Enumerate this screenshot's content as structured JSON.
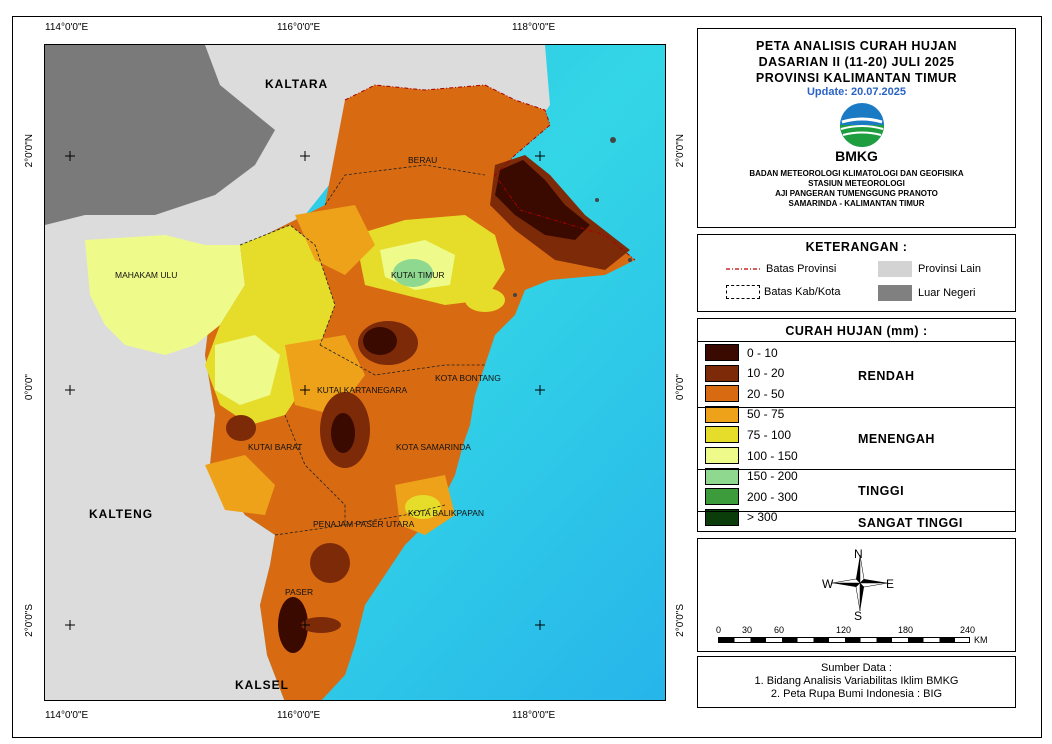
{
  "title": {
    "line1": "PETA ANALISIS CURAH HUJAN",
    "line2": "DASARIAN II (11-20) JULI 2025",
    "line3": "PROVINSI KALIMANTAN TIMUR",
    "update": "Update: 20.07.2025"
  },
  "logo": {
    "text": "BMKG"
  },
  "organization": {
    "line1": "BADAN METEOROLOGI KLIMATOLOGI DAN GEOFISIKA",
    "line2": "STASIUN METEOROLOGI",
    "line3": "AJI PANGERAN TUMENGGUNG PRANOTO",
    "line4": "SAMARINDA - KALIMANTAN TIMUR"
  },
  "keterangan": {
    "header": "KETERANGAN :",
    "items": [
      {
        "label": "Batas Provinsi",
        "symbol": "dash-dot-red"
      },
      {
        "label": "Provinsi Lain",
        "color": "#d3d3d3"
      },
      {
        "label": "Batas Kab/Kota",
        "symbol": "dashed-black"
      },
      {
        "label": "Luar Negeri",
        "color": "#808080"
      }
    ]
  },
  "curah_hujan": {
    "header": "CURAH HUJAN (mm) :",
    "classes": [
      {
        "range": "0 - 10",
        "color": "#3a0a00"
      },
      {
        "range": "10 - 20",
        "color": "#7c2a08"
      },
      {
        "range": "20 - 50",
        "color": "#d86b12"
      },
      {
        "range": "50 - 75",
        "color": "#eea21a"
      },
      {
        "range": "75 - 100",
        "color": "#e6dd2a"
      },
      {
        "range": "100 - 150",
        "color": "#eefb8a"
      },
      {
        "range": "150 - 200",
        "color": "#8fd88f"
      },
      {
        "range": "200 - 300",
        "color": "#3c9c3c"
      },
      {
        "range": "> 300",
        "color": "#0a3d0a"
      }
    ],
    "categories": [
      "RENDAH",
      "MENENGAH",
      "TINGGI",
      "SANGAT TINGGI"
    ]
  },
  "compass": {
    "n": "N",
    "s": "S",
    "e": "E",
    "w": "W"
  },
  "scalebar": {
    "ticks": [
      "0",
      "30",
      "60",
      "120",
      "180",
      "240"
    ],
    "unit": "KM"
  },
  "sources": {
    "header": "Sumber Data :",
    "line1": "1. Bidang Analisis Variabilitas Iklim BMKG",
    "line2": "2. Peta Rupa Bumi Indonesia : BIG"
  },
  "graticule": {
    "lon": [
      "114°0'0\"E",
      "116°0'0\"E",
      "118°0'0\"E"
    ],
    "lat": [
      "2°0'0\"N",
      "0°0'0\"",
      "2°0'0\"S"
    ]
  },
  "regions": {
    "kaltara": "KALTARA",
    "kalteng": "KALTENG",
    "kalsel": "KALSEL"
  },
  "kabupaten": {
    "berau": "BERAU",
    "mahakam_ulu": "MAHAKAM ULU",
    "kutai_timur": "KUTAI TIMUR",
    "kutai_kartanegara": "KUTAI KARTANEGARA",
    "kota_bontang": "KOTA BONTANG",
    "kutai_barat": "KUTAI BARAT",
    "kota_samarinda": "KOTA SAMARINDA",
    "kota_balikpapan": "KOTA BALIKPAPAN",
    "penajam_paser_utara": "PENAJAM PASER UTARA",
    "paser": "PASER"
  },
  "colors": {
    "sea": "#3fd0e8",
    "other_province": "#dcdcdc",
    "foreign": "#7a7a7a"
  }
}
